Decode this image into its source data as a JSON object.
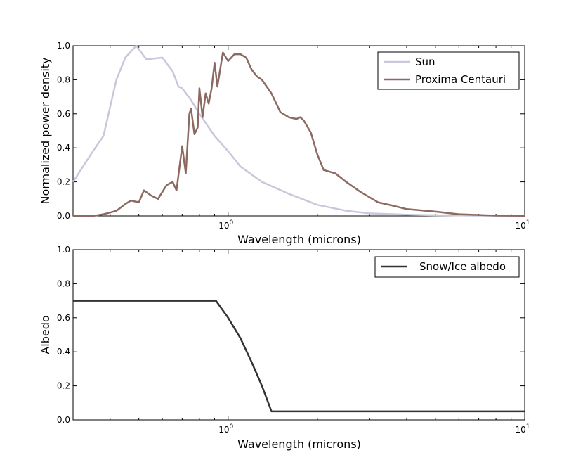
{
  "chart_data": [
    {
      "type": "line",
      "xscale": "log",
      "xlim": [
        0.3,
        10
      ],
      "ylim": [
        0,
        1.0
      ],
      "xlabel": "Wavelength (microns)",
      "ylabel": "Normalized power density",
      "xtick_labels": [
        {
          "value": 1,
          "base": "10",
          "exp": "0"
        },
        {
          "value": 10,
          "base": "10",
          "exp": "1"
        }
      ],
      "yticks": [
        "0.0",
        "0.2",
        "0.4",
        "0.6",
        "0.8",
        "1.0"
      ],
      "legend_position": "top-right",
      "series": [
        {
          "name": "Sun",
          "color": "#c9c7dc",
          "x": [
            0.3,
            0.35,
            0.38,
            0.42,
            0.45,
            0.49,
            0.53,
            0.6,
            0.65,
            0.68,
            0.7,
            0.75,
            0.8,
            0.9,
            1.0,
            1.1,
            1.3,
            1.6,
            2.0,
            2.5,
            3.0,
            4.0,
            5.0,
            7.0,
            10.0
          ],
          "y": [
            0.2,
            0.38,
            0.47,
            0.8,
            0.93,
            1.0,
            0.92,
            0.93,
            0.85,
            0.76,
            0.75,
            0.68,
            0.6,
            0.47,
            0.38,
            0.29,
            0.2,
            0.13,
            0.065,
            0.03,
            0.015,
            0.007,
            0.004,
            0.002,
            0.001
          ]
        },
        {
          "name": "Proxima Centauri",
          "color": "#8c6a62",
          "x": [
            0.3,
            0.35,
            0.38,
            0.4,
            0.42,
            0.45,
            0.47,
            0.5,
            0.52,
            0.55,
            0.58,
            0.6,
            0.62,
            0.65,
            0.67,
            0.7,
            0.72,
            0.74,
            0.75,
            0.77,
            0.79,
            0.8,
            0.82,
            0.84,
            0.86,
            0.88,
            0.9,
            0.92,
            0.94,
            0.96,
            1.0,
            1.05,
            1.1,
            1.15,
            1.2,
            1.25,
            1.3,
            1.4,
            1.5,
            1.6,
            1.7,
            1.75,
            1.8,
            1.9,
            2.0,
            2.1,
            2.3,
            2.5,
            2.8,
            3.2,
            3.6,
            4.0,
            5.0,
            6.0,
            8.0,
            10.0
          ],
          "y": [
            0.0,
            0.0,
            0.01,
            0.02,
            0.03,
            0.07,
            0.09,
            0.08,
            0.15,
            0.12,
            0.1,
            0.14,
            0.18,
            0.2,
            0.15,
            0.41,
            0.25,
            0.6,
            0.63,
            0.48,
            0.52,
            0.75,
            0.58,
            0.72,
            0.66,
            0.75,
            0.9,
            0.76,
            0.86,
            0.96,
            0.91,
            0.95,
            0.95,
            0.93,
            0.86,
            0.82,
            0.8,
            0.72,
            0.61,
            0.58,
            0.57,
            0.58,
            0.56,
            0.49,
            0.36,
            0.27,
            0.25,
            0.2,
            0.14,
            0.08,
            0.06,
            0.04,
            0.025,
            0.01,
            0.002,
            0.001
          ]
        }
      ]
    },
    {
      "type": "line",
      "xscale": "log",
      "xlim": [
        0.3,
        10
      ],
      "ylim": [
        0,
        1.0
      ],
      "xlabel": "Wavelength (microns)",
      "ylabel": "Albedo",
      "xtick_labels": [
        {
          "value": 1,
          "base": "10",
          "exp": "0"
        },
        {
          "value": 10,
          "base": "10",
          "exp": "1"
        }
      ],
      "yticks": [
        "0.0",
        "0.2",
        "0.4",
        "0.6",
        "0.8",
        "1.0"
      ],
      "legend_position": "top-right",
      "series": [
        {
          "name": "Snow/Ice albedo",
          "color": "#333333",
          "x": [
            0.3,
            0.91,
            1.0,
            1.1,
            1.2,
            1.3,
            1.4,
            10.0
          ],
          "y": [
            0.7,
            0.7,
            0.6,
            0.48,
            0.34,
            0.2,
            0.05,
            0.05
          ]
        }
      ]
    }
  ]
}
